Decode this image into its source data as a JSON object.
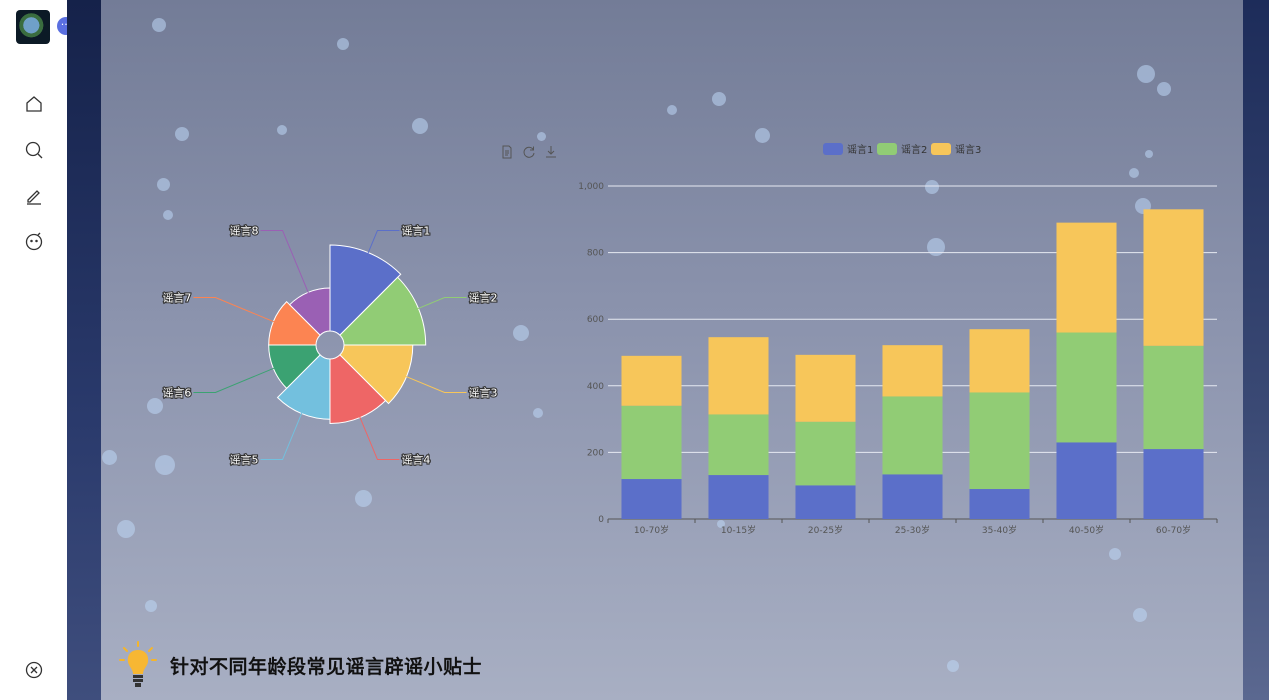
{
  "sidebar": {
    "items": [
      {
        "name": "home-icon"
      },
      {
        "name": "search-icon"
      },
      {
        "name": "edit-icon"
      },
      {
        "name": "chat-icon"
      }
    ],
    "bottom_icon": "close-circle-icon",
    "more_label": "···"
  },
  "tip": {
    "title": "针对不同年龄段常见谣言辟谣小贴士"
  },
  "colors": {
    "s1": "#5b6fc9",
    "s2": "#91cc75",
    "s3": "#f7c65a"
  },
  "chart_data": [
    {
      "type": "pie",
      "subtype": "rose",
      "labels": [
        "谣言1",
        "谣言2",
        "谣言3",
        "谣言4",
        "谣言5",
        "谣言6",
        "谣言7",
        "谣言8"
      ],
      "values": [
        40,
        38,
        32,
        30,
        28,
        22,
        22,
        20
      ],
      "colors": [
        "#5b6fc9",
        "#91cc75",
        "#f7c65a",
        "#ee6666",
        "#73c0de",
        "#3ba272",
        "#fc8452",
        "#9a60b4"
      ]
    },
    {
      "type": "bar",
      "stacked": true,
      "categories": [
        "10-70岁",
        "10-15岁",
        "20-25岁",
        "25-30岁",
        "35-40岁",
        "40-50岁",
        "60-70岁"
      ],
      "series": [
        {
          "name": "谣言1",
          "values": [
            120,
            132,
            101,
            134,
            90,
            230,
            210
          ]
        },
        {
          "name": "谣言2",
          "values": [
            220,
            182,
            191,
            234,
            290,
            330,
            310
          ]
        },
        {
          "name": "谣言3",
          "values": [
            150,
            232,
            201,
            154,
            190,
            330,
            410
          ]
        }
      ],
      "ylim": [
        0,
        1000
      ],
      "yticks": [
        "0",
        "200",
        "400",
        "600",
        "800",
        "1,000"
      ],
      "grid": true,
      "legend": "top-center"
    }
  ]
}
